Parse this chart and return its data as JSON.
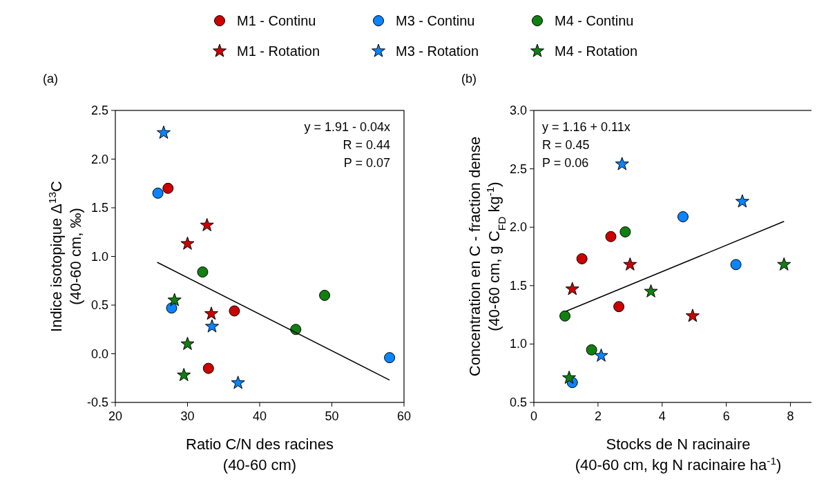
{
  "chart_data": [
    {
      "type": "scatter",
      "title": "(a)",
      "xlabel": "Ratio C/N des racines\n(40-60 cm)",
      "ylabel": "Indice isotopique Δ$^{13}$C\n(40-60 cm, ‰)",
      "xlim": [
        20,
        60
      ],
      "xticks": [
        20,
        30,
        40,
        50,
        60
      ],
      "ylim": [
        -0.5,
        2.5
      ],
      "yticks": [
        -0.5,
        {
          "value": 0,
          "label": "0.0"
        },
        0.5,
        {
          "value": 1,
          "label": "1.0"
        },
        1.5,
        {
          "value": 2,
          "label": "2.0"
        },
        2.5
      ],
      "legend": "top",
      "annotations": [
        "y = 1.91 - 0.04x",
        "R = 0.44",
        "P = 0.07"
      ],
      "series": [
        {
          "name": "M1 - Continu",
          "color": "#cc0000",
          "marker": "circle",
          "x": [
            27.3,
            36.5,
            32.9
          ],
          "values": [
            1.7,
            0.44,
            -0.15
          ]
        },
        {
          "name": "M3 - Continu",
          "color": "#0a84ff",
          "marker": "circle",
          "x": [
            25.9,
            27.8,
            58.0
          ],
          "values": [
            1.65,
            0.47,
            -0.04
          ]
        },
        {
          "name": "M4 - Continu",
          "color": "#118011",
          "marker": "circle",
          "x": [
            32.1,
            49.0,
            45.0
          ],
          "values": [
            0.84,
            0.6,
            0.25
          ]
        },
        {
          "name": "M1 - Rotation",
          "color": "#cc0000",
          "marker": "star",
          "x": [
            30.0,
            32.7,
            33.3
          ],
          "values": [
            1.13,
            1.32,
            0.41
          ]
        },
        {
          "name": "M3 - Rotation",
          "color": "#0a84ff",
          "marker": "star",
          "x": [
            26.7,
            33.4,
            37.0
          ],
          "values": [
            2.27,
            0.28,
            -0.3
          ]
        },
        {
          "name": "M4 - Rotation",
          "color": "#118011",
          "marker": "star",
          "x": [
            28.2,
            30.0,
            29.5
          ],
          "values": [
            0.55,
            0.1,
            -0.22
          ]
        },
        {
          "type": "line",
          "color": "#000000",
          "x": [
            25.8,
            58.0
          ],
          "values": [
            0.94,
            -0.27
          ]
        }
      ]
    },
    {
      "type": "scatter",
      "title": "(b)",
      "xlabel": "Stocks de N racinaire\n(40-60 cm, kg N racinaire ha$^{-1}$)",
      "ylabel": "Concentration en C - fraction dense\n(40-60 cm, g C$_{FD}$ kg$^{-1}$)",
      "xlim": [
        0,
        9
      ],
      "xticks": [
        0,
        2,
        4,
        6,
        8
      ],
      "ylim": [
        0.5,
        3.0
      ],
      "yticks": [
        0.5,
        {
          "value": 1,
          "label": "1.0"
        },
        1.5,
        {
          "value": 2,
          "label": "2.0"
        },
        2.5,
        {
          "value": 3,
          "label": "3.0"
        }
      ],
      "annotations": [
        "y = 1.16 + 0.11x",
        "R = 0.45",
        "P = 0.06"
      ],
      "series": [
        {
          "color": "#cc0000",
          "marker": "circle",
          "x": [
            1.5,
            2.4,
            2.65
          ],
          "values": [
            1.73,
            1.92,
            1.32
          ]
        },
        {
          "color": "#0a84ff",
          "marker": "circle",
          "x": [
            4.65,
            6.3,
            1.2
          ],
          "values": [
            2.09,
            1.68,
            0.67
          ]
        },
        {
          "color": "#118011",
          "marker": "circle",
          "x": [
            0.97,
            2.85,
            1.8
          ],
          "values": [
            1.24,
            1.96,
            0.95
          ]
        },
        {
          "color": "#cc0000",
          "marker": "star",
          "x": [
            1.2,
            3.0,
            4.95
          ],
          "values": [
            1.47,
            1.68,
            1.24
          ]
        },
        {
          "color": "#0a84ff",
          "marker": "star",
          "x": [
            2.75,
            6.5,
            2.1
          ],
          "values": [
            2.54,
            2.22,
            0.9
          ]
        },
        {
          "color": "#118011",
          "marker": "star",
          "x": [
            7.8,
            3.65,
            1.1
          ],
          "values": [
            1.68,
            1.45,
            0.71
          ]
        },
        {
          "type": "line",
          "color": "#000000",
          "x": [
            1.0,
            7.8
          ],
          "values": [
            1.28,
            2.05
          ]
        }
      ]
    }
  ]
}
